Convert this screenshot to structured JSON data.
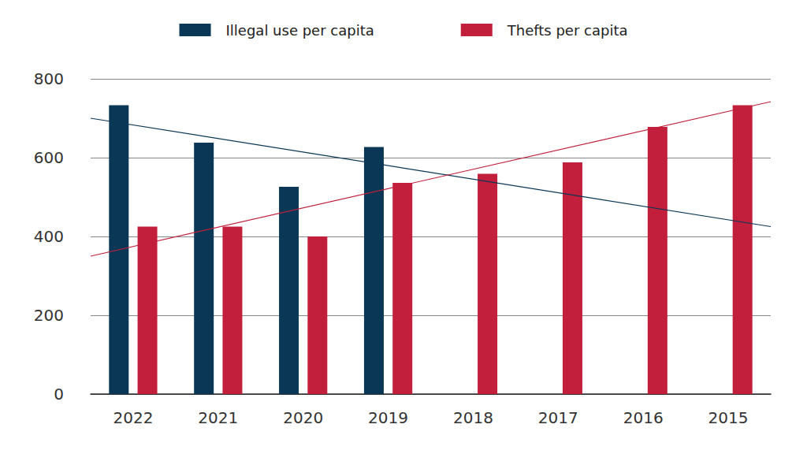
{
  "chart_data": {
    "type": "bar",
    "categories": [
      "2022",
      "2021",
      "2020",
      "2019",
      "2018",
      "2017",
      "2016",
      "2015"
    ],
    "series": [
      {
        "name": "Illegal use per capita",
        "color": "#0a3756",
        "values": [
          733,
          638,
          526,
          627,
          null,
          null,
          null,
          null
        ],
        "trend": [
          700,
          425
        ]
      },
      {
        "name": "Thefts per capita",
        "color": "#c21f3c",
        "values": [
          425,
          425,
          400,
          536,
          559,
          588,
          678,
          733
        ],
        "trend": [
          350,
          742
        ]
      }
    ],
    "ylim": [
      0,
      800
    ],
    "yticks": [
      0,
      200,
      400,
      600,
      800
    ],
    "grid": true,
    "legend": "top"
  }
}
